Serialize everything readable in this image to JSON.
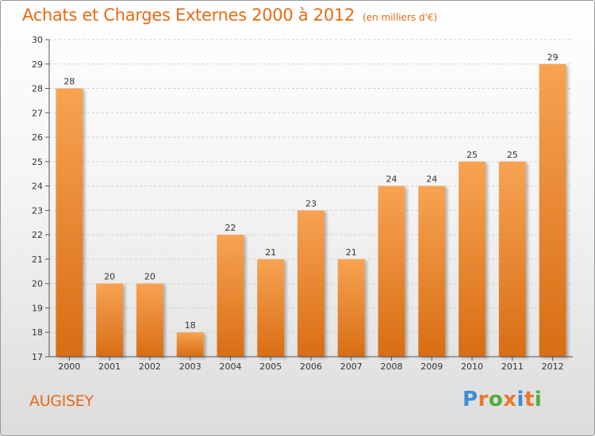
{
  "title": "Achats et Charges Externes 2000 à 2012",
  "unit": "(en milliers d'€)",
  "commune": "AUGISEY",
  "logo": {
    "letters": [
      "P",
      "r",
      "o",
      "x",
      "i",
      "t",
      "i"
    ],
    "colors": [
      "#3a8ed6",
      "#e9782b",
      "#4fae3c",
      "#e9782b",
      "#3a8ed6",
      "#e9782b",
      "#4fae3c"
    ]
  },
  "colors": {
    "bar_light": "#f7a352",
    "bar_dark": "#d86d14",
    "title": "#e86a10",
    "grid": "#cfcfcf",
    "axis": "#555555"
  },
  "chart_data": {
    "type": "bar",
    "title": "Achats et Charges Externes 2000 à 2012",
    "categories": [
      "2000",
      "2001",
      "2002",
      "2003",
      "2004",
      "2005",
      "2006",
      "2007",
      "2008",
      "2009",
      "2010",
      "2011",
      "2012"
    ],
    "values": [
      28,
      20,
      20,
      18,
      22,
      21,
      23,
      21,
      24,
      24,
      25,
      25,
      29
    ],
    "ylim": [
      17,
      30
    ],
    "yticks": [
      17,
      18,
      19,
      20,
      21,
      22,
      23,
      24,
      25,
      26,
      27,
      28,
      29,
      30
    ],
    "grid": true,
    "data_labels": true
  }
}
